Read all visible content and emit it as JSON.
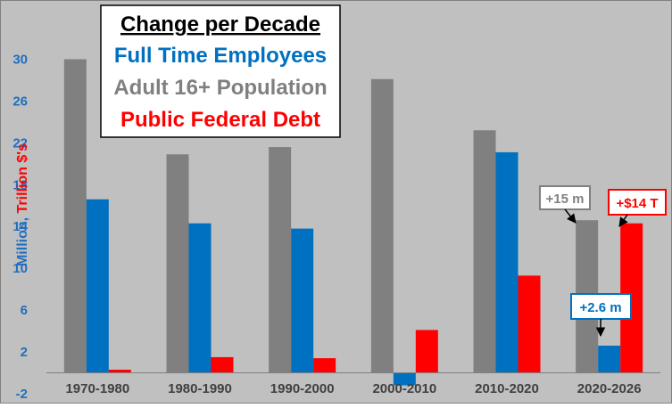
{
  "colors": {
    "background": "#c0c0c0",
    "population": "#808080",
    "employees": "#0070c0",
    "debt": "#ff0000",
    "axis_blue": "#1f6fc0"
  },
  "legend": {
    "title": "Change per Decade",
    "items": [
      {
        "label": "Full Time Employees",
        "color": "#0070c0"
      },
      {
        "label": "Adult 16+ Population",
        "color": "#808080"
      },
      {
        "label": "Public Federal Debt",
        "color": "#ff0000"
      }
    ]
  },
  "annotations": {
    "population_last": "+15 m",
    "employees_last": "+2.6 m",
    "debt_last": "+$14 T"
  },
  "chart_data": {
    "type": "bar",
    "ylabel_part1": "Million, ",
    "ylabel_part2": "Trillion $'s",
    "ylim": [
      -2,
      32
    ],
    "yticks": [
      -2,
      2,
      6,
      10,
      14,
      18,
      22,
      26,
      30
    ],
    "grid": false,
    "categories": [
      "1970-1980",
      "1980-1990",
      "1990-2000",
      "2000-2010",
      "2010-2020",
      "2020-2026"
    ],
    "series": [
      {
        "name": "Adult 16+ Population",
        "color": "#808080",
        "values": [
          30.0,
          20.9,
          21.6,
          28.1,
          23.2,
          14.6
        ]
      },
      {
        "name": "Full Time Employees",
        "color": "#0070c0",
        "values": [
          16.6,
          14.3,
          13.8,
          -1.2,
          21.1,
          2.6
        ]
      },
      {
        "name": "Public Federal Debt",
        "color": "#ff0000",
        "values": [
          0.3,
          1.5,
          1.4,
          4.1,
          9.3,
          14.3
        ]
      }
    ]
  }
}
